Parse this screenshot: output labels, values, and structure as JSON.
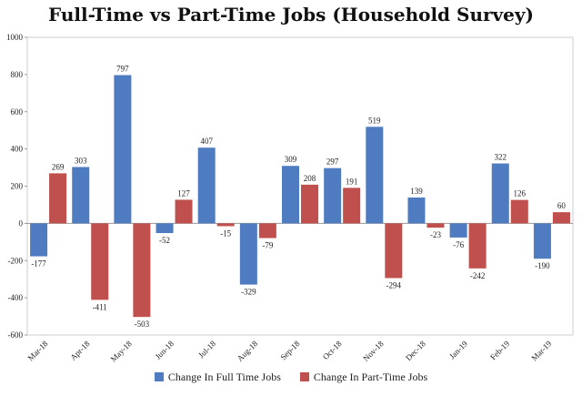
{
  "chart_data": {
    "type": "bar",
    "title": "Full-Time vs Part-Time Jobs (Household Survey)",
    "xlabel": "",
    "ylabel": "",
    "ylim": [
      -600,
      1000
    ],
    "yticks": [
      "1000",
      "800",
      "600",
      "400",
      "200",
      "0",
      "-200",
      "-400",
      "-600"
    ],
    "categories": [
      "Mar-18",
      "Apr-18",
      "May-18",
      "Jun-18",
      "Jul-18",
      "Aug-18",
      "Sep-18",
      "Oct-18",
      "Nov-18",
      "Dec-18",
      "Jan-19",
      "Feb-19",
      "Mar-19"
    ],
    "series": [
      {
        "name": "Change In Full Time Jobs",
        "color": "#4f7cc0",
        "values": [
          -177,
          303,
          797,
          -52,
          407,
          -329,
          309,
          297,
          519,
          139,
          -76,
          322,
          -190
        ]
      },
      {
        "name": "Change In Part-Time Jobs",
        "color": "#c0504d",
        "values": [
          269,
          -411,
          -503,
          127,
          -15,
          -79,
          208,
          191,
          -294,
          -23,
          -242,
          126,
          60
        ]
      }
    ],
    "grid": false,
    "legend_position": "bottom"
  }
}
